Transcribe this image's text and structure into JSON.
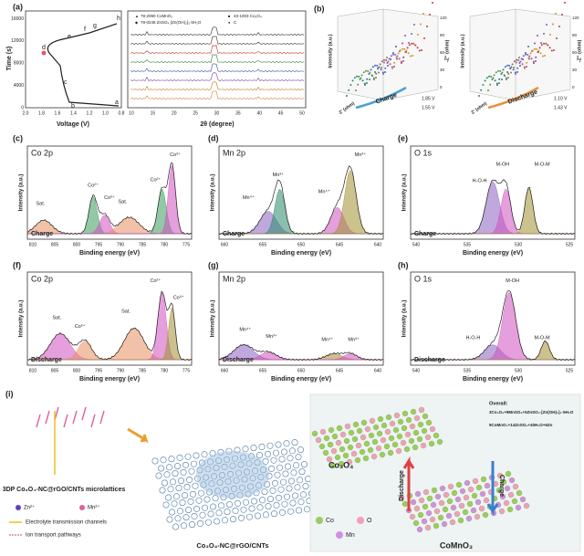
{
  "panel_a": {
    "label": "(a)",
    "ylabel": "Time (s)",
    "xlabel": "Voltage (V)",
    "xticks": [
      "2.0",
      "1.8",
      "1.6",
      "1.4",
      "1.2",
      "1.0",
      "0.8"
    ],
    "yticks": [
      "0",
      "4000",
      "8000",
      "12000",
      "16000"
    ],
    "points": [
      "a",
      "b",
      "c",
      "d",
      "e",
      "f",
      "g",
      "h"
    ],
    "xrd_xlabel": "2θ (degree)",
    "xrd_xticks": [
      "10",
      "15",
      "20",
      "25",
      "30",
      "35",
      "40",
      "45",
      "50"
    ],
    "legend": [
      "78-2090 CoMnO₃",
      "43-1003 Co₃O₄",
      "78-0246 ZnSO₄·[Zn(OH)₂]₃·5H₂O",
      "C"
    ]
  },
  "panel_b": {
    "label": "(b)",
    "zlabel": "-Z'' (ohm)",
    "ylabel": "Intensity (a.u.)",
    "xlabel": "Z' (ohm)",
    "left": {
      "arrow": "Charge",
      "potentials": [
        "1.85 V",
        "1.55 V"
      ]
    },
    "right": {
      "arrow": "Discharge",
      "potentials": [
        "1.10 V",
        "1.43 V"
      ]
    },
    "zticks": [
      "0",
      "30",
      "60",
      "90",
      "120"
    ]
  },
  "xps": {
    "xlabel": "Binding energy (eV)",
    "ylabel": "Intensity (a.u.)",
    "panels": [
      {
        "label": "(c)",
        "title": "Co 2p",
        "state": "Charge",
        "xticks": [
          "810",
          "805",
          "800",
          "795",
          "790",
          "785",
          "780",
          "775"
        ],
        "peaks": [
          "Sat.",
          "Co²⁺",
          "Co³⁺",
          "Sat.",
          "Co²⁺",
          "Co³⁺"
        ]
      },
      {
        "label": "(d)",
        "title": "Mn 2p",
        "state": "Charge",
        "xticks": [
          "660",
          "655",
          "650",
          "645",
          "640"
        ],
        "peaks": [
          "Mn⁴⁺",
          "Mn³⁺",
          "Mn⁴⁺",
          "Mn³⁺"
        ]
      },
      {
        "label": "(e)",
        "title": "O 1s",
        "state": "Charge",
        "xticks": [
          "540",
          "535",
          "530",
          "525"
        ],
        "peaks": [
          "M-OH",
          "H-O-H",
          "M-O-M"
        ]
      },
      {
        "label": "(f)",
        "title": "Co 2p",
        "state": "Discharge",
        "xticks": [
          "810",
          "805",
          "800",
          "795",
          "790",
          "785",
          "780",
          "775"
        ],
        "peaks": [
          "Sat.",
          "Co²⁺",
          "Sat.",
          "Co²⁺",
          "Co³⁺"
        ]
      },
      {
        "label": "(g)",
        "title": "Mn 2p",
        "state": "Discharge",
        "xticks": [
          "660",
          "655",
          "650",
          "645",
          "640"
        ],
        "peaks": [
          "Mn⁴⁺",
          "Mn³⁺",
          "Mn⁴⁺",
          "Mn³⁺"
        ]
      },
      {
        "label": "(h)",
        "title": "O 1s",
        "state": "Discharge",
        "xticks": [
          "540",
          "535",
          "530",
          "525"
        ],
        "peaks": [
          "M-OH",
          "H-O-H",
          "M-O-M"
        ]
      }
    ]
  },
  "panel_i": {
    "label": "(i)",
    "lattice": "3DP Co₃O₄-NC@rGO/CNTs microlattices",
    "ions": [
      "Zn²⁺",
      "Mn²⁺"
    ],
    "channels": "Electrolyte transmission channels",
    "pathways": "Ion transport pathways",
    "composite": "Co₃O₄-NC@rGO/CNTs",
    "top_phase": "Co₃O₄",
    "bottom_phase": "CoMnO₃",
    "discharge": "Discharge",
    "charge": "Charge",
    "elements": [
      "Co",
      "O",
      "Mn"
    ],
    "overall": "Overall:",
    "equations": [
      "3Co₃O₄+9MnSO₄+5ZnSO₄·[Zn(OH)₂]₃·5H₂O",
      "9CoMnO₃+14ZnSO₄+40H₂O+6Zn"
    ]
  }
}
